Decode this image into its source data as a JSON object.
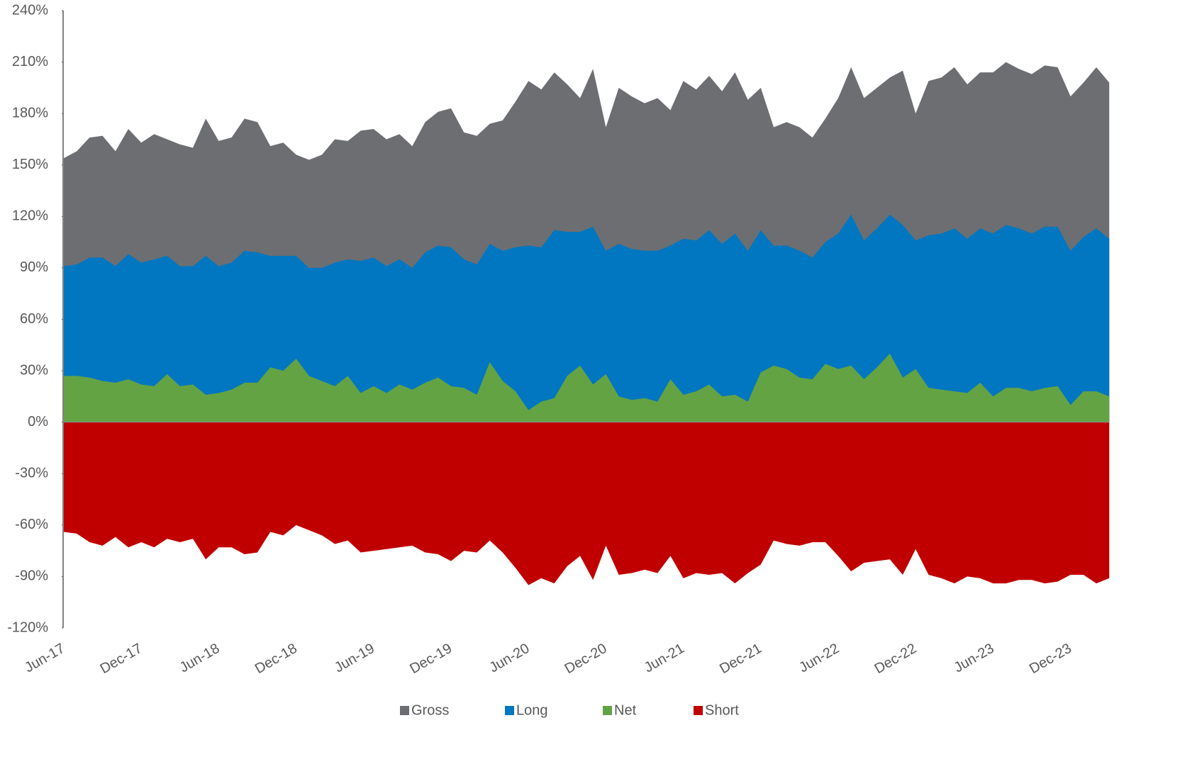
{
  "chart_data": {
    "type": "area",
    "categories": [
      "Jun-17",
      null,
      null,
      null,
      null,
      null,
      "Dec-17",
      null,
      null,
      null,
      null,
      null,
      "Jun-18",
      null,
      null,
      null,
      null,
      null,
      "Dec-18",
      null,
      null,
      null,
      null,
      null,
      "Jun-19",
      null,
      null,
      null,
      null,
      null,
      "Dec-19",
      null,
      null,
      null,
      null,
      null,
      "Jun-20",
      null,
      null,
      null,
      null,
      null,
      "Dec-20",
      null,
      null,
      null,
      null,
      null,
      "Jun-21",
      null,
      null,
      null,
      null,
      null,
      "Dec-21",
      null,
      null,
      null,
      null,
      null,
      "Jun-22",
      null,
      null,
      null,
      null,
      null,
      "Dec-22",
      null,
      null,
      null,
      null,
      null,
      "Jun-23",
      null,
      null,
      null,
      null,
      null,
      "Dec-23",
      null,
      null,
      null
    ],
    "series": [
      {
        "name": "Gross",
        "color": "#6d6e71",
        "values": [
          154,
          158,
          166,
          167,
          158,
          171,
          163,
          168,
          165,
          162,
          160,
          177,
          164,
          166,
          177,
          175,
          161,
          163,
          156,
          153,
          156,
          165,
          164,
          170,
          171,
          165,
          168,
          161,
          175,
          181,
          183,
          169,
          167,
          174,
          176,
          187,
          199,
          194,
          204,
          197,
          189,
          206,
          172,
          195,
          190,
          186,
          189,
          182,
          199,
          194,
          202,
          193,
          204,
          188,
          195,
          172,
          175,
          172,
          166,
          177,
          189,
          207,
          189,
          195,
          201,
          205,
          180,
          199,
          201,
          207,
          197,
          204,
          204,
          210,
          206,
          203,
          208,
          207,
          190,
          198,
          207,
          198
        ]
      },
      {
        "name": "Long",
        "color": "#0077c0",
        "values": [
          91,
          92,
          96,
          96,
          91,
          98,
          93,
          95,
          97,
          91,
          91,
          97,
          91,
          93,
          100,
          99,
          97,
          97,
          97,
          90,
          90,
          93,
          95,
          94,
          96,
          91,
          95,
          90,
          99,
          103,
          102,
          95,
          92,
          104,
          100,
          102,
          103,
          102,
          112,
          111,
          111,
          114,
          100,
          104,
          101,
          100,
          100,
          103,
          107,
          106,
          112,
          104,
          110,
          100,
          112,
          103,
          103,
          100,
          96,
          105,
          110,
          121,
          106,
          113,
          121,
          115,
          106,
          109,
          110,
          113,
          107,
          113,
          110,
          115,
          113,
          110,
          114,
          114,
          100,
          108,
          113,
          107
        ]
      },
      {
        "name": "Net",
        "color": "#64a344",
        "values": [
          27,
          27,
          26,
          24,
          23,
          25,
          22,
          21,
          28,
          21,
          22,
          16,
          17,
          19,
          23,
          23,
          32,
          30,
          37,
          27,
          24,
          21,
          27,
          17,
          21,
          17,
          22,
          19,
          23,
          26,
          21,
          20,
          16,
          35,
          24,
          18,
          7,
          12,
          14,
          27,
          33,
          22,
          28,
          15,
          13,
          14,
          12,
          25,
          16,
          18,
          22,
          15,
          16,
          12,
          29,
          33,
          31,
          26,
          25,
          34,
          31,
          33,
          25,
          32,
          40,
          26,
          31,
          20,
          19,
          18,
          17,
          23,
          15,
          20,
          20,
          18,
          20,
          21,
          10,
          18,
          18,
          15
        ]
      },
      {
        "name": "Short",
        "color": "#c00000",
        "values": [
          -64,
          -65,
          -70,
          -72,
          -67,
          -73,
          -70,
          -73,
          -68,
          -70,
          -68,
          -80,
          -73,
          -73,
          -77,
          -76,
          -64,
          -66,
          -60,
          -63,
          -66,
          -71,
          -69,
          -76,
          -75,
          -74,
          -73,
          -72,
          -76,
          -77,
          -81,
          -75,
          -76,
          -69,
          -76,
          -85,
          -95,
          -91,
          -94,
          -84,
          -78,
          -92,
          -72,
          -89,
          -88,
          -86,
          -88,
          -78,
          -91,
          -88,
          -89,
          -88,
          -94,
          -88,
          -83,
          -69,
          -71,
          -72,
          -70,
          -70,
          -78,
          -87,
          -82,
          -81,
          -80,
          -89,
          -74,
          -89,
          -91,
          -94,
          -90,
          -91,
          -94,
          -94,
          -92,
          -92,
          -94,
          -93,
          -89,
          -89,
          -94,
          -91
        ]
      }
    ],
    "ylim": [
      -120,
      240
    ],
    "yticks": [
      {
        "value": -120,
        "label": "-120%"
      },
      {
        "value": -90,
        "label": "-90%"
      },
      {
        "value": -60,
        "label": "-60%"
      },
      {
        "value": -30,
        "label": "-30%"
      },
      {
        "value": 0,
        "label": "0%"
      },
      {
        "value": 30,
        "label": "30%"
      },
      {
        "value": 60,
        "label": "60%"
      },
      {
        "value": 90,
        "label": "90%"
      },
      {
        "value": 120,
        "label": "120%"
      },
      {
        "value": 150,
        "label": "150%"
      },
      {
        "value": 180,
        "label": "180%"
      },
      {
        "value": 210,
        "label": "210%"
      },
      {
        "value": 240,
        "label": "240%"
      }
    ],
    "grid": false,
    "legend": "bottom"
  }
}
